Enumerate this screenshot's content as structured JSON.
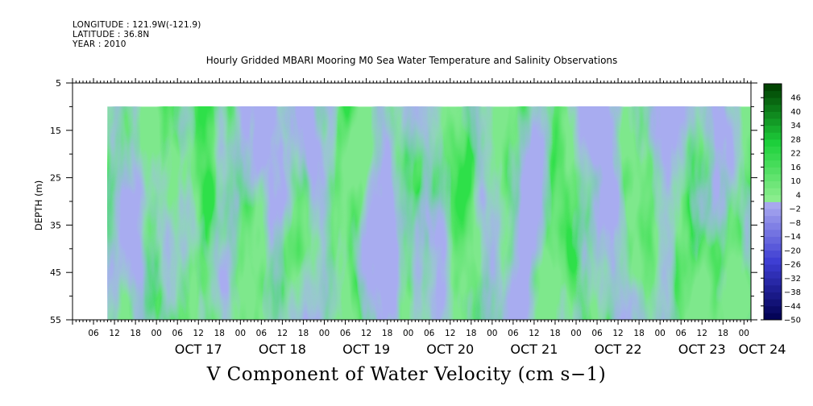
{
  "header": {
    "longitude": "LONGITUDE : 121.9W(-121.9)",
    "latitude": "LATITUDE : 36.8N",
    "year": "YEAR : 2010"
  },
  "chart_data": {
    "type": "heatmap",
    "title": "Hourly Gridded MBARI Mooring M0 Sea Water Temperature and Salinity Observations",
    "bottom_title": "V Component of Water Velocity (cm s−1)",
    "ylabel": "DEPTH (m)",
    "y_range": [
      55,
      5
    ],
    "y_ticks": [
      "5",
      "15",
      "25",
      "35",
      "45",
      "55"
    ],
    "data_depth_range": [
      10,
      55
    ],
    "x_range": [
      "2010-10-16T00:00",
      "2010-10-24T02:00"
    ],
    "x_data_start": "2010-10-16T10:00",
    "x_hour_ticks": [
      "06",
      "12",
      "18",
      "00",
      "06",
      "12",
      "18",
      "00",
      "06",
      "12",
      "18",
      "00",
      "06",
      "12",
      "18",
      "00",
      "06",
      "12",
      "18",
      "00",
      "06",
      "12",
      "18",
      "00",
      "06",
      "12",
      "18",
      "00",
      "06",
      "12",
      "18",
      "00"
    ],
    "x_day_labels": [
      "OCT 17",
      "OCT 18",
      "OCT 19",
      "OCT 20",
      "OCT 21",
      "OCT 22",
      "OCT 23",
      "OCT 24"
    ],
    "colorbar": {
      "labels": [
        "46",
        "40",
        "34",
        "28",
        "22",
        "16",
        "10",
        "4",
        "−2",
        "−8",
        "−14",
        "−20",
        "−26",
        "−32",
        "−38",
        "−44",
        "−50"
      ],
      "range": [
        -50,
        52
      ],
      "step": 3
    },
    "colors": {
      "positive_strong": "#003c00",
      "positive_mid": "#1ed23c",
      "positive_light": "#96f096",
      "negative_light": "#aaaaf0",
      "negative_mid": "#3c3cd2",
      "negative_strong": "#000050"
    }
  }
}
